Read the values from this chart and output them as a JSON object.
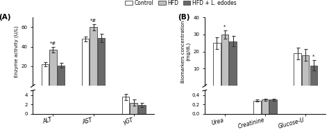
{
  "panel_A": {
    "title": "(A)",
    "ylabel": "Enzyme activity (U/L)",
    "groups": [
      "ALT",
      "AST",
      "γGT"
    ],
    "upper": {
      "ylim": [
        0,
        70
      ],
      "yticks": [
        20,
        40,
        60
      ],
      "bars": {
        "Control": [
          22,
          48,
          null
        ],
        "HFD": [
          37,
          60,
          null
        ],
        "HFD + L. edodes": [
          21,
          49,
          null
        ]
      },
      "errors": {
        "Control": [
          2.0,
          2.5,
          null
        ],
        "HFD": [
          3.0,
          3.0,
          null
        ],
        "HFD + L. edodes": [
          2.5,
          4.0,
          null
        ]
      },
      "annotations": {
        "ALT_idx": 0,
        "AST_idx": 1,
        "ALT_sym": "*#",
        "AST_sym": "*#"
      }
    },
    "lower": {
      "ylim": [
        0,
        5
      ],
      "yticks": [
        0,
        2,
        4
      ],
      "bars": {
        "Control": [
          null,
          null,
          3.6
        ],
        "HFD": [
          null,
          null,
          2.4
        ],
        "HFD + L. edodes": [
          null,
          null,
          1.9
        ]
      },
      "errors": {
        "Control": [
          null,
          null,
          0.7
        ],
        "HFD": [
          null,
          null,
          0.6
        ],
        "HFD + L. edodes": [
          null,
          null,
          0.4
        ]
      }
    }
  },
  "panel_B": {
    "title": "(B)",
    "ylabel": "Biomarkers concentration\n(mg/dL)",
    "groups": [
      "Urea",
      "Creatinine",
      "Glucose-U"
    ],
    "upper": {
      "ylim": [
        0,
        40
      ],
      "yticks": [
        10,
        20,
        30,
        40
      ],
      "bars": {
        "Control": [
          25,
          null,
          19
        ],
        "HFD": [
          30,
          null,
          18
        ],
        "HFD + L. edodes": [
          26,
          null,
          12
        ]
      },
      "errors": {
        "Control": [
          3.5,
          null,
          3.5
        ],
        "HFD": [
          2.5,
          null,
          3.5
        ],
        "HFD + L. edodes": [
          3.0,
          null,
          3.0
        ]
      },
      "annotations": {
        "Urea_idx": 0,
        "GlucoseU_idx": 2,
        "Urea_sym": "*",
        "GlucoseU_sym": "*"
      }
    },
    "lower": {
      "ylim": [
        0.0,
        0.5
      ],
      "yticks": [
        0.0,
        0.2,
        0.4
      ],
      "bars": {
        "Control": [
          null,
          0.28,
          null
        ],
        "HFD": [
          null,
          0.3,
          null
        ],
        "HFD + L. edodes": [
          null,
          0.3,
          null
        ]
      },
      "errors": {
        "Control": [
          null,
          0.02,
          null
        ],
        "HFD": [
          null,
          0.02,
          null
        ],
        "HFD + L. edodes": [
          null,
          0.02,
          null
        ]
      }
    }
  },
  "legend": {
    "labels": [
      "Control",
      "HFD",
      "HFD + L. edodes"
    ],
    "colors": [
      "#ffffff",
      "#c0c0c0",
      "#696969"
    ],
    "edgecolors": [
      "#555555",
      "#555555",
      "#555555"
    ]
  },
  "bar_colors": [
    "#ffffff",
    "#c0c0c0",
    "#696969"
  ],
  "bar_edge": "#555555",
  "bar_width": 0.2
}
